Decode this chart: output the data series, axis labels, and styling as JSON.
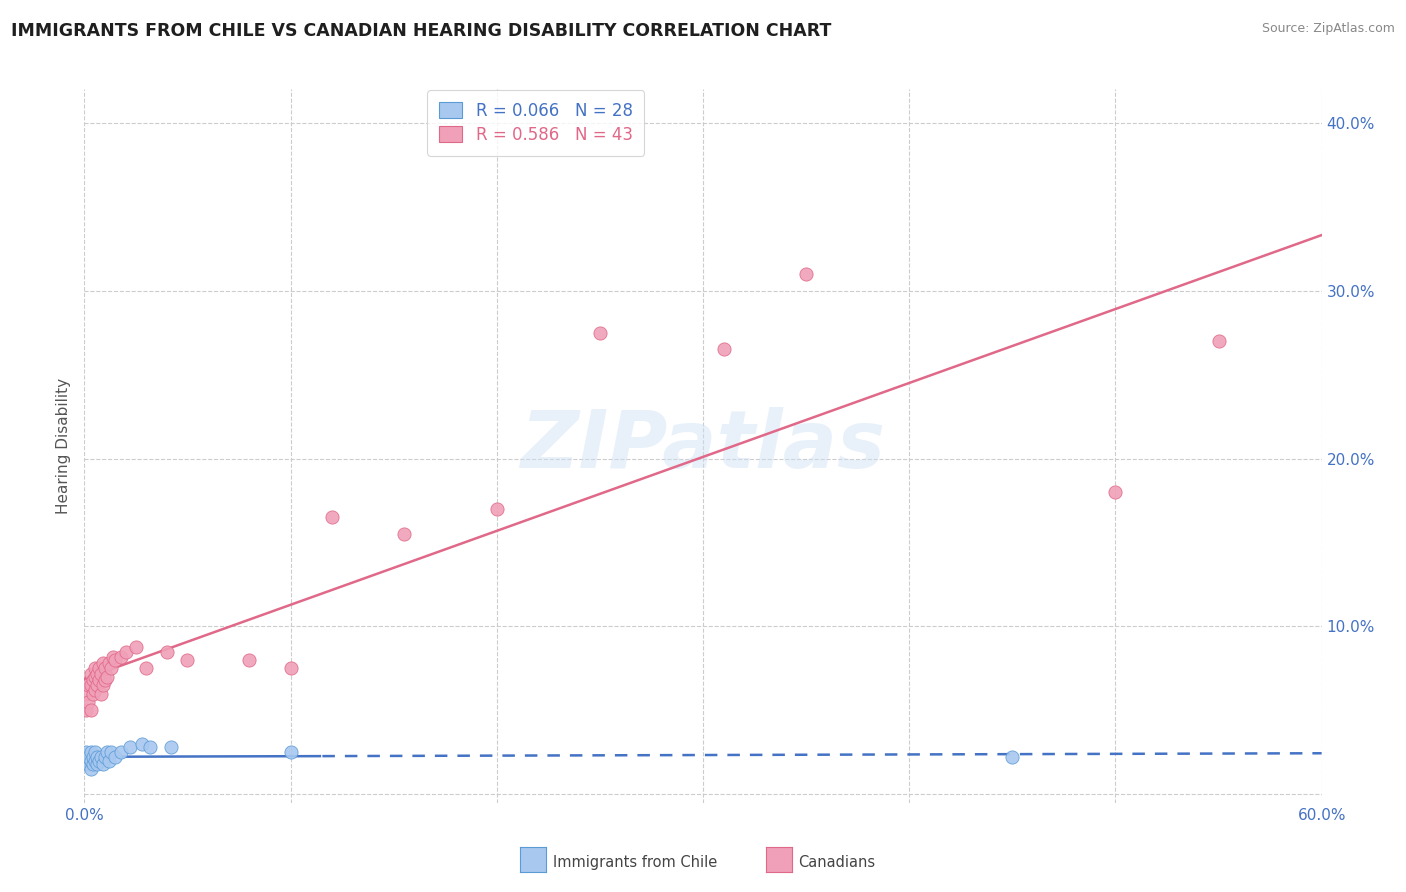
{
  "title": "IMMIGRANTS FROM CHILE VS CANADIAN HEARING DISABILITY CORRELATION CHART",
  "source": "Source: ZipAtlas.com",
  "ylabel": "Hearing Disability",
  "xlim": [
    0.0,
    0.6
  ],
  "ylim": [
    -0.005,
    0.42
  ],
  "xtick_positions": [
    0.0,
    0.1,
    0.2,
    0.3,
    0.4,
    0.5,
    0.6
  ],
  "ytick_positions": [
    0.0,
    0.1,
    0.2,
    0.3,
    0.4
  ],
  "legend_blue_r": "R = 0.066",
  "legend_blue_n": "N = 28",
  "legend_pink_r": "R = 0.586",
  "legend_pink_n": "N = 43",
  "blue_fill": "#a8c8f0",
  "pink_fill": "#f0a0b8",
  "blue_edge": "#5b9bd5",
  "pink_edge": "#e06888",
  "blue_line": "#4472c4",
  "pink_line": "#e06888",
  "grid_color": "#cccccc",
  "watermark": "ZIPatlas",
  "bg_color": "#ffffff",
  "title_color": "#1f1f1f",
  "axis_color": "#4472c4",
  "label_color": "#555555",
  "source_color": "#888888",
  "blue_x": [
    0.001,
    0.001,
    0.002,
    0.002,
    0.003,
    0.003,
    0.003,
    0.004,
    0.004,
    0.005,
    0.005,
    0.006,
    0.006,
    0.007,
    0.008,
    0.009,
    0.01,
    0.011,
    0.012,
    0.013,
    0.015,
    0.017,
    0.02,
    0.025,
    0.03,
    0.04,
    0.1,
    0.45
  ],
  "blue_y": [
    0.02,
    0.025,
    0.018,
    0.022,
    0.015,
    0.02,
    0.025,
    0.018,
    0.022,
    0.02,
    0.025,
    0.018,
    0.022,
    0.02,
    0.022,
    0.018,
    0.022,
    0.025,
    0.02,
    0.025,
    0.022,
    0.025,
    0.028,
    0.03,
    0.028,
    0.028,
    0.025,
    0.022
  ],
  "pink_x": [
    0.001,
    0.002,
    0.002,
    0.003,
    0.003,
    0.003,
    0.004,
    0.004,
    0.005,
    0.005,
    0.005,
    0.006,
    0.006,
    0.007,
    0.007,
    0.008,
    0.008,
    0.009,
    0.009,
    0.01,
    0.01,
    0.011,
    0.012,
    0.013,
    0.014,
    0.015,
    0.016,
    0.018,
    0.02,
    0.025,
    0.03,
    0.04,
    0.05,
    0.08,
    0.1,
    0.12,
    0.15,
    0.2,
    0.25,
    0.31,
    0.35,
    0.5,
    0.55
  ],
  "pink_y": [
    0.045,
    0.055,
    0.06,
    0.05,
    0.065,
    0.07,
    0.06,
    0.068,
    0.062,
    0.07,
    0.075,
    0.065,
    0.072,
    0.068,
    0.075,
    0.06,
    0.072,
    0.065,
    0.078,
    0.068,
    0.075,
    0.07,
    0.078,
    0.075,
    0.082,
    0.08,
    0.085,
    0.082,
    0.085,
    0.088,
    0.075,
    0.085,
    0.08,
    0.08,
    0.075,
    0.165,
    0.155,
    0.17,
    0.275,
    0.265,
    0.31,
    0.18,
    0.27
  ],
  "blue_line_solid_end": 0.12,
  "blue_line_dash_start": 0.12
}
